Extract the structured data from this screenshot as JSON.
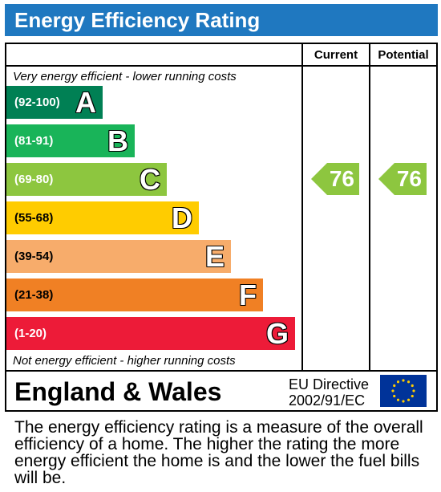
{
  "header": {
    "title": "Energy Efficiency Rating"
  },
  "columns": {
    "current": "Current",
    "potential": "Potential"
  },
  "captions": {
    "top": "Very energy efficient - lower running costs",
    "bottom": "Not energy efficient - higher running costs"
  },
  "chart_data": {
    "type": "bar",
    "categories": [
      "A",
      "B",
      "C",
      "D",
      "E",
      "F",
      "G"
    ],
    "ranges": [
      "(92-100)",
      "(81-91)",
      "(69-80)",
      "(55-68)",
      "(39-54)",
      "(21-38)",
      "(1-20)"
    ],
    "colors": [
      "#008054",
      "#19b459",
      "#8dc63f",
      "#ffcc00",
      "#f7ac6b",
      "#f08024",
      "#ed1b38"
    ],
    "current": {
      "value": 76,
      "band": "C"
    },
    "potential": {
      "value": 76,
      "band": "C"
    }
  },
  "footer_bar": {
    "country": "England & Wales",
    "directive_line1": "EU Directive",
    "directive_line2": "2002/91/EC"
  },
  "description": "The energy efficiency rating is a measure of the overall efficiency of a home. The higher the rating the more energy efficient the home is and the lower the fuel bills will be."
}
